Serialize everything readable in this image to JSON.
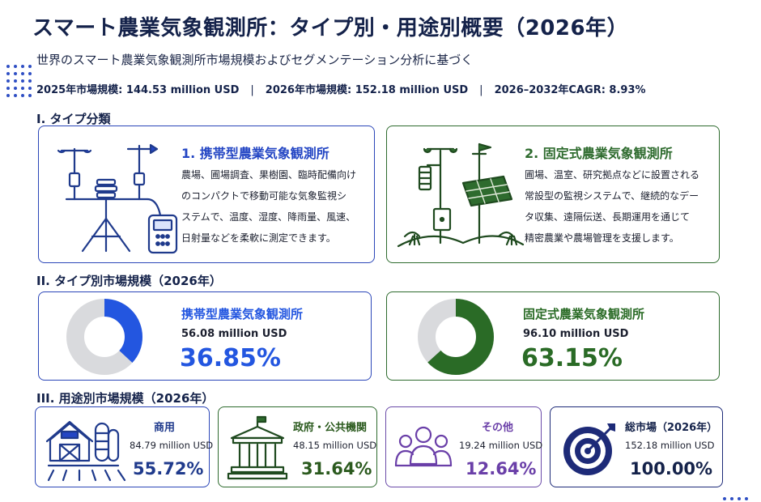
{
  "header": {
    "title": "スマート農業気象観測所：タイプ別・用途別概要（2026年）",
    "subtitle": "世界のスマート農業気象観測所市場規模およびセグメンテーション分析に基づく",
    "stats": [
      "2025年市場規模: 144.53 million USD",
      "2026年市場規模: 152.18 million USD",
      "2026–2032年CAGR: 8.93%"
    ],
    "separator": "|"
  },
  "sections": {
    "type_classification": "I. タイプ分類",
    "type_market": "II. タイプ別市場規模（2026年）",
    "application_market": "III. 用途別市場規模（2026年）"
  },
  "types": [
    {
      "name": "1. 携帯型農業気象観測所",
      "desc_lines": [
        "農場、圃場調査、果樹園、臨時配備向け",
        "のコンパクトで移動可能な気象監視シ",
        "ステムで、温度、湿度、降雨量、風速、",
        "日射量などを柔軟に測定できます。"
      ],
      "color": "#2446c4",
      "icon": "portable-weather-station-icon"
    },
    {
      "name": "2. 固定式農業気象観測所",
      "desc_lines": [
        "圃場、温室、研究拠点などに設置される",
        "常設型の監視システムで、継続的なデー",
        "タ収集、遠隔伝送、長期運用を通じて",
        "精密農業や農場管理を支援します。"
      ],
      "color": "#2e6b2e",
      "icon": "fixed-weather-station-icon"
    }
  ],
  "chart_data": [
    {
      "type": "pie",
      "labels": [
        "携帯型農業気象観測所",
        "固定式農業気象観測所"
      ],
      "values": [
        56.08,
        96.1
      ],
      "value_labels": [
        "56.08 million USD",
        "96.10 million USD"
      ],
      "percent_labels": [
        "36.85%",
        "63.15%"
      ],
      "percents": [
        36.85,
        63.15
      ],
      "colors": [
        "#2356e0",
        "#2a6b26"
      ],
      "remainder_color": "#d9dadd",
      "title": "II. タイプ別市場規模（2026年）"
    },
    {
      "type": "table",
      "title": "III. 用途別市場規模（2026年）",
      "rows": [
        {
          "name": "商用",
          "value": "84.79 million USD",
          "percent": "55.72%",
          "color": "#1f3a8c",
          "border": "blue",
          "icon": "barn-silo-icon"
        },
        {
          "name": "政府・公共機関",
          "value": "48.15 million USD",
          "percent": "31.64%",
          "color": "#2b5a1e",
          "border": "green",
          "icon": "government-building-icon"
        },
        {
          "name": "その他",
          "value": "19.24 million USD",
          "percent": "12.64%",
          "color": "#6a3fa8",
          "border": "purple",
          "icon": "people-group-icon"
        },
        {
          "name": "総市場（2026年）",
          "value": "152.18 million USD",
          "percent": "100.00%",
          "color": "#14224a",
          "border": "navy",
          "icon": "target-icon"
        }
      ]
    }
  ]
}
